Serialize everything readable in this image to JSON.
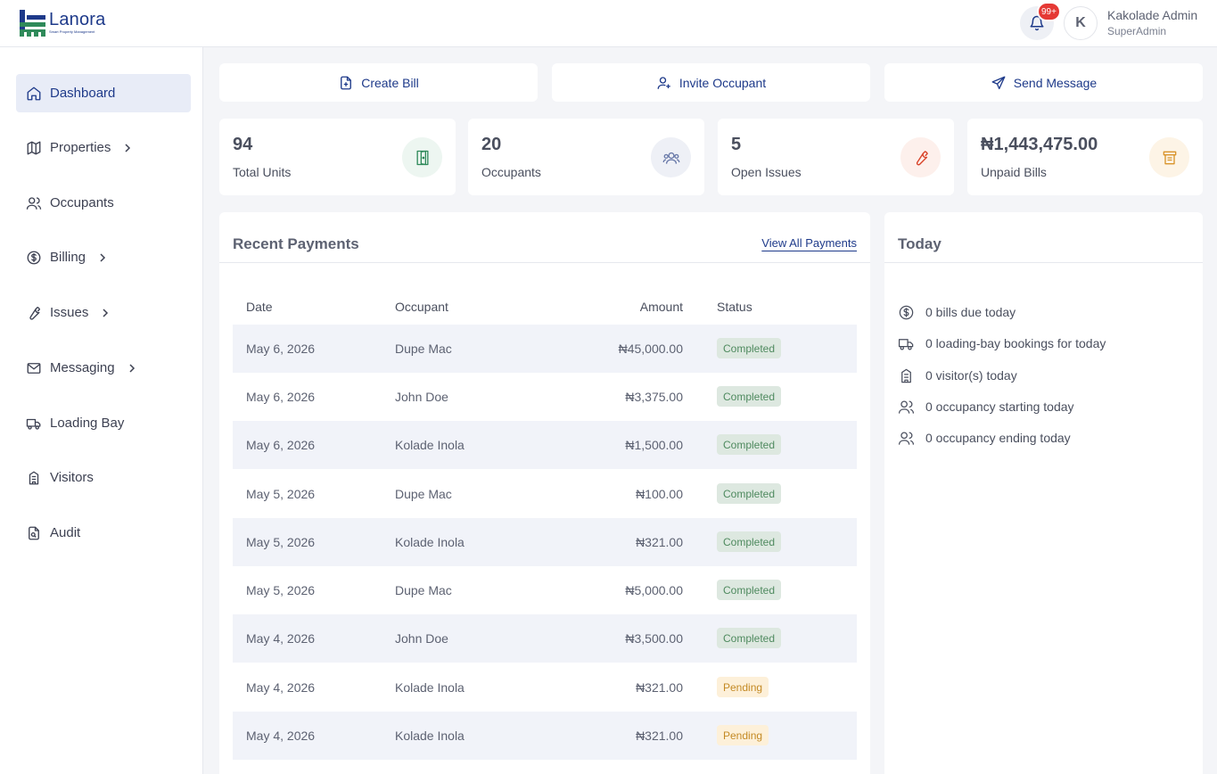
{
  "brand": {
    "name": "Lanora",
    "tagline": "Smart Property Management",
    "color": "#1e3a8a"
  },
  "header": {
    "notification_count": "99+",
    "avatar_initial": "K",
    "user_name": "Kakolade Admin",
    "user_role": "SuperAdmin"
  },
  "sidebar": {
    "items": [
      {
        "label": "Dashboard",
        "icon": "home-icon",
        "active": true
      },
      {
        "label": "Properties",
        "icon": "map-icon",
        "has_submenu": true
      },
      {
        "label": "Occupants",
        "icon": "users-icon"
      },
      {
        "label": "Billing",
        "icon": "dollar-circle-icon",
        "has_submenu": true
      },
      {
        "label": "Issues",
        "icon": "wrench-icon",
        "has_submenu": true
      },
      {
        "label": "Messaging",
        "icon": "mail-icon",
        "has_submenu": true
      },
      {
        "label": "Loading Bay",
        "icon": "truck-icon"
      },
      {
        "label": "Visitors",
        "icon": "building-icon"
      },
      {
        "label": "Audit",
        "icon": "file-audit-icon"
      }
    ]
  },
  "actions": {
    "create_bill": "Create Bill",
    "invite_occupant": "Invite Occupant",
    "send_message": "Send Message"
  },
  "stats": [
    {
      "value": "94",
      "label": "Total Units",
      "icon": "door-icon",
      "color": "#2f8a5a",
      "bg": "#edf6f1"
    },
    {
      "value": "20",
      "label": "Occupants",
      "icon": "users-icon",
      "color": "#6878a8",
      "bg": "#eef0f6"
    },
    {
      "value": "5",
      "label": "Open Issues",
      "icon": "wrench-icon",
      "color": "#d9452b",
      "bg": "#fdf0ec"
    },
    {
      "value": "₦1,443,475.00",
      "label": "Unpaid Bills",
      "icon": "receipt-icon",
      "color": "#d9942b",
      "bg": "#fdf4e6"
    }
  ],
  "payments": {
    "title": "Recent Payments",
    "view_all": "View All Payments",
    "columns": {
      "date": "Date",
      "occupant": "Occupant",
      "amount": "Amount",
      "status": "Status"
    },
    "rows": [
      {
        "date": "May 6, 2026",
        "occupant": "Dupe Mac",
        "amount": "₦45,000.00",
        "status": "Completed"
      },
      {
        "date": "May 6, 2026",
        "occupant": "John Doe",
        "amount": "₦3,375.00",
        "status": "Completed"
      },
      {
        "date": "May 6, 2026",
        "occupant": "Kolade Inola",
        "amount": "₦1,500.00",
        "status": "Completed"
      },
      {
        "date": "May 5, 2026",
        "occupant": "Dupe Mac",
        "amount": "₦100.00",
        "status": "Completed"
      },
      {
        "date": "May 5, 2026",
        "occupant": "Kolade Inola",
        "amount": "₦321.00",
        "status": "Completed"
      },
      {
        "date": "May 5, 2026",
        "occupant": "Dupe Mac",
        "amount": "₦5,000.00",
        "status": "Completed"
      },
      {
        "date": "May 4, 2026",
        "occupant": "John Doe",
        "amount": "₦3,500.00",
        "status": "Completed"
      },
      {
        "date": "May 4, 2026",
        "occupant": "Kolade Inola",
        "amount": "₦321.00",
        "status": "Pending"
      },
      {
        "date": "May 4, 2026",
        "occupant": "Kolade Inola",
        "amount": "₦321.00",
        "status": "Pending"
      }
    ]
  },
  "today": {
    "title": "Today",
    "items": [
      {
        "text": "0 bills due today",
        "icon": "dollar-circle-icon"
      },
      {
        "text": "0 loading-bay bookings for today",
        "icon": "truck-icon"
      },
      {
        "text": "0 visitor(s) today",
        "icon": "building-icon"
      },
      {
        "text": "0 occupancy starting today",
        "icon": "user-icon"
      },
      {
        "text": "0 occupancy ending today",
        "icon": "user-icon"
      }
    ]
  }
}
